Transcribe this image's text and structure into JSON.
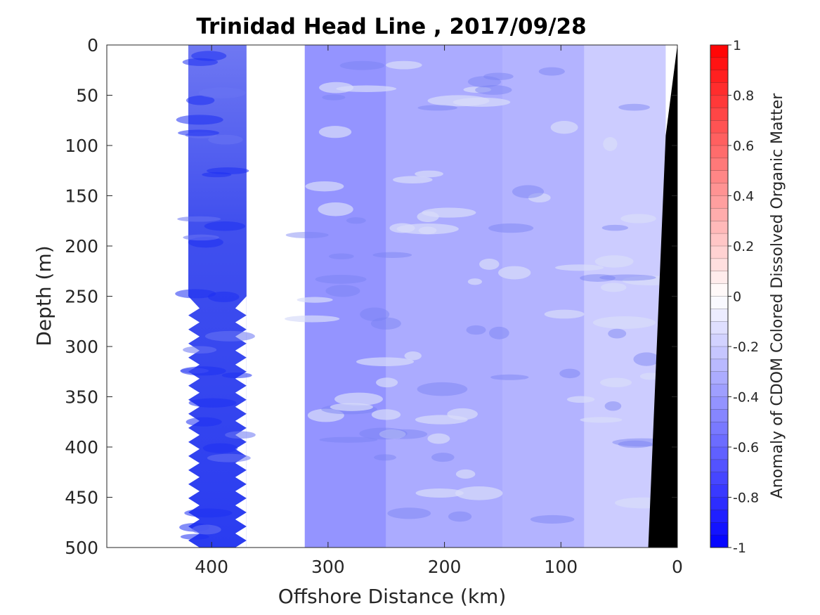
{
  "chart_data": {
    "type": "heatmap",
    "title": "Trinidad Head Line , 2017/09/28",
    "xlabel": "Offshore Distance (km)",
    "ylabel": "Depth (m)",
    "colorbar_label": "Anomaly of CDOM Colored Dissolved Organic Matter",
    "xlim": [
      490,
      0
    ],
    "ylim": [
      500,
      0
    ],
    "x_reversed": true,
    "y_reversed": true,
    "x_ticks": [
      400,
      300,
      200,
      100,
      0
    ],
    "x_tick_labels": [
      "400",
      "300",
      "200",
      "100",
      "0"
    ],
    "y_ticks": [
      0,
      50,
      100,
      150,
      200,
      250,
      300,
      350,
      400,
      450,
      500
    ],
    "y_tick_labels": [
      "0",
      "50",
      "100",
      "150",
      "200",
      "250",
      "300",
      "350",
      "400",
      "450",
      "500"
    ],
    "clim": [
      -1,
      1
    ],
    "colorbar_ticks": [
      1,
      0.8,
      0.6,
      0.4,
      0.2,
      0,
      -0.2,
      -0.4,
      -0.6,
      -0.8,
      -1
    ],
    "colorbar_tick_labels": [
      "1",
      "0.8",
      "0.6",
      "0.4",
      "0.2",
      "0",
      "-0.2",
      "-0.4",
      "-0.6",
      "-0.8",
      "-1"
    ],
    "colorbar_levels": 40,
    "colormap": {
      "low": "#0000ff",
      "mid": "#ffffff",
      "high": "#ff0000"
    },
    "data_columns": [
      {
        "x_range": [
          420,
          370
        ],
        "depth_max": 500,
        "anomaly": -0.62
      },
      {
        "x_range": [
          320,
          250
        ],
        "depth_max": 500,
        "anomaly": -0.42
      },
      {
        "x_range": [
          250,
          150
        ],
        "depth_max": 500,
        "anomaly": -0.33
      },
      {
        "x_range": [
          150,
          80
        ],
        "depth_max": 500,
        "anomaly": -0.3
      },
      {
        "x_range": [
          80,
          10
        ],
        "depth_max": 500,
        "anomaly": -0.2
      }
    ],
    "data_gap_km": [
      370,
      320
    ],
    "grid": false,
    "bathymetry": {
      "color": "#000000",
      "offshore_km": [
        0,
        10,
        25
      ],
      "depth_m": [
        0,
        90,
        500
      ]
    }
  }
}
